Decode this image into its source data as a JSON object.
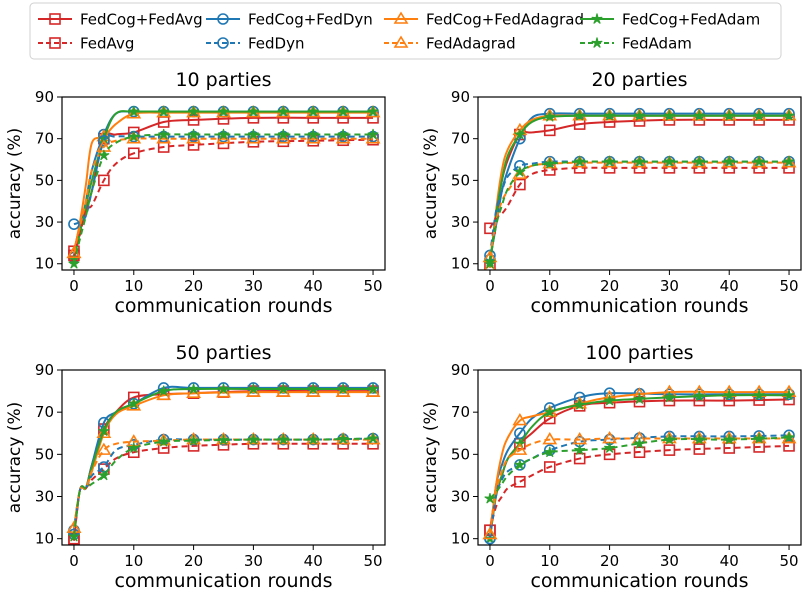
{
  "legend": {
    "position": "top-center",
    "entries": [
      {
        "label": "FedCog+FedAvg",
        "color": "#d62728",
        "marker": "square",
        "dash": "solid"
      },
      {
        "label": "FedCog+FedDyn",
        "color": "#1f77b4",
        "marker": "circle",
        "dash": "solid"
      },
      {
        "label": "FedCog+FedAdagrad",
        "color": "#ff7f0e",
        "marker": "triangle",
        "dash": "solid"
      },
      {
        "label": "FedCog+FedAdam",
        "color": "#2ca02c",
        "marker": "star",
        "dash": "solid"
      },
      {
        "label": "FedAvg",
        "color": "#d62728",
        "marker": "square",
        "dash": "dashed"
      },
      {
        "label": "FedDyn",
        "color": "#1f77b4",
        "marker": "circle",
        "dash": "dashed"
      },
      {
        "label": "FedAdagrad",
        "color": "#ff7f0e",
        "marker": "triangle",
        "dash": "dashed"
      },
      {
        "label": "FedAdam",
        "color": "#2ca02c",
        "marker": "star",
        "dash": "dashed"
      }
    ]
  },
  "chart_data": [
    {
      "type": "line",
      "title": "10 parties",
      "xlabel": "communication rounds",
      "ylabel": "accuracy (%)",
      "xlim": [
        -2,
        52
      ],
      "ylim": [
        7,
        90
      ],
      "xticks": [
        0,
        10,
        20,
        30,
        40,
        50
      ],
      "yticks": [
        10,
        30,
        50,
        70,
        90
      ],
      "grid": false,
      "marker_x": [
        0,
        5,
        10,
        15,
        20,
        25,
        30,
        35,
        40,
        45,
        50
      ],
      "series": [
        {
          "name": "FedCog+FedAvg",
          "x": [
            0,
            1,
            2,
            3,
            5,
            7,
            10,
            15,
            20,
            30,
            40,
            50
          ],
          "y": [
            16,
            28,
            36,
            45,
            70,
            72,
            73,
            78,
            79,
            80,
            80,
            80
          ]
        },
        {
          "name": "FedCog+FedDyn",
          "x": [
            0,
            1,
            2,
            3,
            5,
            7,
            10,
            15,
            20,
            30,
            40,
            50
          ],
          "y": [
            13,
            25,
            40,
            55,
            72,
            82,
            83,
            83,
            83,
            83,
            83,
            83
          ]
        },
        {
          "name": "FedCog+FedAdagrad",
          "x": [
            0,
            1,
            2,
            3,
            5,
            7,
            10,
            15,
            20,
            30,
            40,
            50
          ],
          "y": [
            15,
            30,
            48,
            68,
            71,
            77,
            82,
            82.5,
            82.5,
            82.5,
            82.5,
            82.5
          ]
        },
        {
          "name": "FedCog+FedAdam",
          "x": [
            0,
            1,
            2,
            3,
            5,
            7,
            10,
            15,
            20,
            30,
            40,
            50
          ],
          "y": [
            12,
            25,
            38,
            50,
            70,
            82,
            83,
            83,
            83,
            83,
            83,
            83
          ]
        },
        {
          "name": "FedAvg",
          "x": [
            0,
            1,
            2,
            3,
            5,
            7,
            10,
            15,
            20,
            30,
            40,
            50
          ],
          "y": [
            14,
            24,
            36,
            38,
            50,
            58,
            63,
            66,
            67,
            68.5,
            69,
            69.5
          ]
        },
        {
          "name": "FedDyn",
          "x": [
            0,
            1,
            2,
            3,
            5,
            7,
            10,
            15,
            20,
            30,
            40,
            50
          ],
          "y": [
            29,
            30,
            33,
            45,
            69,
            71,
            71,
            71,
            71,
            71,
            71,
            71
          ]
        },
        {
          "name": "FedAdagrad",
          "x": [
            0,
            1,
            2,
            3,
            5,
            7,
            10,
            15,
            20,
            30,
            40,
            50
          ],
          "y": [
            15,
            28,
            40,
            55,
            66,
            69,
            70,
            70,
            70,
            70,
            70,
            70
          ]
        },
        {
          "name": "FedAdam",
          "x": [
            0,
            1,
            2,
            3,
            5,
            7,
            10,
            15,
            20,
            30,
            40,
            50
          ],
          "y": [
            10,
            22,
            33,
            45,
            62,
            68,
            71,
            72,
            72,
            72,
            72,
            72
          ]
        }
      ]
    },
    {
      "type": "line",
      "title": "20 parties",
      "xlabel": "communication rounds",
      "ylabel": "accuracy (%)",
      "xlim": [
        -2,
        52
      ],
      "ylim": [
        7,
        90
      ],
      "xticks": [
        0,
        10,
        20,
        30,
        40,
        50
      ],
      "yticks": [
        10,
        30,
        50,
        70,
        90
      ],
      "grid": false,
      "marker_x": [
        0,
        5,
        10,
        15,
        20,
        25,
        30,
        35,
        40,
        45,
        50
      ],
      "series": [
        {
          "name": "FedCog+FedAvg",
          "x": [
            0,
            1,
            2,
            3,
            5,
            7,
            10,
            15,
            20,
            30,
            40,
            50
          ],
          "y": [
            9,
            33,
            50,
            60,
            72,
            73,
            74,
            77,
            78,
            79,
            79,
            79
          ]
        },
        {
          "name": "FedCog+FedDyn",
          "x": [
            0,
            1,
            2,
            3,
            5,
            7,
            10,
            15,
            20,
            30,
            40,
            50
          ],
          "y": [
            12,
            28,
            45,
            55,
            70,
            80,
            82,
            82,
            82,
            82,
            82,
            82
          ]
        },
        {
          "name": "FedCog+FedAdagrad",
          "x": [
            0,
            1,
            2,
            3,
            5,
            7,
            10,
            15,
            20,
            30,
            40,
            50
          ],
          "y": [
            8,
            35,
            55,
            65,
            74,
            79,
            81,
            81,
            81,
            81,
            81,
            81
          ]
        },
        {
          "name": "FedCog+FedAdam",
          "x": [
            0,
            1,
            2,
            3,
            5,
            7,
            10,
            15,
            20,
            30,
            40,
            50
          ],
          "y": [
            10,
            33,
            50,
            62,
            72,
            78,
            80.5,
            81,
            81,
            81,
            81,
            81
          ]
        },
        {
          "name": "FedAvg",
          "x": [
            0,
            1,
            2,
            3,
            5,
            7,
            10,
            15,
            20,
            30,
            40,
            50
          ],
          "y": [
            27,
            32,
            34,
            38,
            48,
            53,
            55,
            56,
            56,
            56,
            56,
            56
          ]
        },
        {
          "name": "FedDyn",
          "x": [
            0,
            1,
            2,
            3,
            5,
            7,
            10,
            15,
            20,
            30,
            40,
            50
          ],
          "y": [
            14,
            35,
            45,
            52,
            57,
            58,
            59,
            59,
            59,
            59,
            59,
            59
          ]
        },
        {
          "name": "FedAdagrad",
          "x": [
            0,
            1,
            2,
            3,
            5,
            7,
            10,
            15,
            20,
            30,
            40,
            50
          ],
          "y": [
            13,
            30,
            40,
            45,
            53,
            57,
            58,
            58.5,
            58.5,
            58.5,
            58.5,
            58.5
          ]
        },
        {
          "name": "FedAdam",
          "x": [
            0,
            1,
            2,
            3,
            5,
            7,
            10,
            15,
            20,
            30,
            40,
            50
          ],
          "y": [
            11,
            28,
            38,
            46,
            54,
            57,
            58,
            59,
            59,
            59,
            59,
            59
          ]
        }
      ]
    },
    {
      "type": "line",
      "title": "50 parties",
      "xlabel": "communication rounds",
      "ylabel": "accuracy (%)",
      "xlim": [
        -2,
        52
      ],
      "ylim": [
        7,
        90
      ],
      "xticks": [
        0,
        10,
        20,
        30,
        40,
        50
      ],
      "yticks": [
        10,
        30,
        50,
        70,
        90
      ],
      "grid": false,
      "marker_x": [
        0,
        5,
        10,
        15,
        20,
        25,
        30,
        35,
        40,
        45,
        50
      ],
      "series": [
        {
          "name": "FedCog+FedAvg",
          "x": [
            0,
            1,
            2,
            3,
            5,
            7,
            10,
            15,
            20,
            30,
            40,
            50
          ],
          "y": [
            10,
            33,
            34,
            45,
            62,
            70,
            77,
            78.5,
            79,
            80,
            80,
            80
          ]
        },
        {
          "name": "FedCog+FedDyn",
          "x": [
            0,
            1,
            2,
            3,
            5,
            7,
            10,
            15,
            20,
            30,
            40,
            50
          ],
          "y": [
            12,
            33,
            34,
            45,
            65,
            70,
            74,
            81.5,
            81.5,
            81.5,
            81.5,
            81.5
          ]
        },
        {
          "name": "FedCog+FedAdagrad",
          "x": [
            0,
            1,
            2,
            3,
            5,
            7,
            10,
            15,
            20,
            30,
            40,
            50
          ],
          "y": [
            15,
            33,
            34,
            42,
            60,
            69,
            73,
            78,
            79,
            79.5,
            79.5,
            79.5
          ]
        },
        {
          "name": "FedCog+FedAdam",
          "x": [
            0,
            1,
            2,
            3,
            5,
            7,
            10,
            15,
            20,
            30,
            40,
            50
          ],
          "y": [
            11,
            33,
            34,
            44,
            61,
            70,
            74,
            80,
            81,
            81,
            81,
            81
          ]
        },
        {
          "name": "FedAvg",
          "x": [
            0,
            1,
            2,
            3,
            5,
            7,
            10,
            15,
            20,
            30,
            40,
            50
          ],
          "y": [
            9,
            33,
            34,
            38,
            43,
            48,
            51,
            53,
            54,
            55,
            55,
            55
          ]
        },
        {
          "name": "FedDyn",
          "x": [
            0,
            1,
            2,
            3,
            5,
            7,
            10,
            15,
            20,
            30,
            40,
            50
          ],
          "y": [
            14,
            33,
            34,
            40,
            44,
            52,
            54.5,
            57,
            57,
            57,
            57,
            57.5
          ]
        },
        {
          "name": "FedAdagrad",
          "x": [
            0,
            1,
            2,
            3,
            5,
            7,
            10,
            15,
            20,
            30,
            40,
            50
          ],
          "y": [
            15,
            33,
            34,
            42,
            52,
            55,
            56,
            56.5,
            57,
            57,
            57,
            57
          ]
        },
        {
          "name": "FedAdam",
          "x": [
            0,
            1,
            2,
            3,
            5,
            7,
            10,
            15,
            20,
            30,
            40,
            50
          ],
          "y": [
            11,
            33,
            34,
            36,
            40,
            47,
            53,
            56,
            56.5,
            57,
            57,
            57.5
          ]
        }
      ]
    },
    {
      "type": "line",
      "title": "100 parties",
      "xlabel": "communication rounds",
      "ylabel": "accuracy (%)",
      "xlim": [
        -2,
        52
      ],
      "ylim": [
        7,
        90
      ],
      "xticks": [
        0,
        10,
        20,
        30,
        40,
        50
      ],
      "yticks": [
        10,
        30,
        50,
        70,
        90
      ],
      "grid": false,
      "marker_x": [
        0,
        5,
        10,
        15,
        20,
        25,
        30,
        35,
        40,
        45,
        50
      ],
      "series": [
        {
          "name": "FedCog+FedAvg",
          "x": [
            0,
            1,
            2,
            3,
            5,
            7,
            10,
            15,
            20,
            30,
            40,
            50
          ],
          "y": [
            14,
            32,
            40,
            48,
            55,
            60,
            67,
            73,
            74.5,
            75.5,
            75.5,
            76
          ]
        },
        {
          "name": "FedCog+FedDyn",
          "x": [
            0,
            1,
            2,
            3,
            5,
            7,
            10,
            15,
            20,
            30,
            40,
            50
          ],
          "y": [
            10,
            35,
            45,
            52,
            60,
            67,
            72,
            77,
            79,
            78.5,
            78.5,
            78.5
          ]
        },
        {
          "name": "FedCog+FedAdagrad",
          "x": [
            0,
            1,
            2,
            3,
            5,
            7,
            10,
            15,
            20,
            30,
            40,
            50
          ],
          "y": [
            12,
            35,
            50,
            58,
            66,
            68,
            70,
            74,
            77,
            79.5,
            79.5,
            79.5
          ]
        },
        {
          "name": "FedCog+FedAdam",
          "x": [
            0,
            1,
            2,
            3,
            5,
            7,
            10,
            15,
            20,
            30,
            40,
            50
          ],
          "y": [
            10,
            30,
            40,
            48,
            55,
            63,
            70,
            73.5,
            75.5,
            77,
            78,
            78
          ]
        },
        {
          "name": "FedAvg",
          "x": [
            0,
            1,
            2,
            3,
            5,
            7,
            10,
            15,
            20,
            30,
            40,
            50
          ],
          "y": [
            14,
            25,
            30,
            34,
            37,
            40,
            44,
            48,
            50,
            52,
            53,
            54
          ]
        },
        {
          "name": "FedDyn",
          "x": [
            0,
            1,
            2,
            3,
            5,
            7,
            10,
            15,
            20,
            30,
            40,
            50
          ],
          "y": [
            10,
            30,
            38,
            42,
            45,
            48,
            52,
            56,
            57,
            58.5,
            58.5,
            59
          ]
        },
        {
          "name": "FedAdagrad",
          "x": [
            0,
            1,
            2,
            3,
            5,
            7,
            10,
            15,
            20,
            30,
            40,
            50
          ],
          "y": [
            12,
            32,
            42,
            48,
            52,
            55,
            57,
            57,
            57.5,
            57.5,
            57.5,
            57.5
          ]
        },
        {
          "name": "FedAdam",
          "x": [
            0,
            1,
            2,
            3,
            5,
            7,
            10,
            15,
            20,
            30,
            40,
            50
          ],
          "y": [
            29,
            32,
            36,
            40,
            45,
            48,
            51,
            52,
            53,
            57,
            57,
            58
          ]
        }
      ]
    }
  ]
}
